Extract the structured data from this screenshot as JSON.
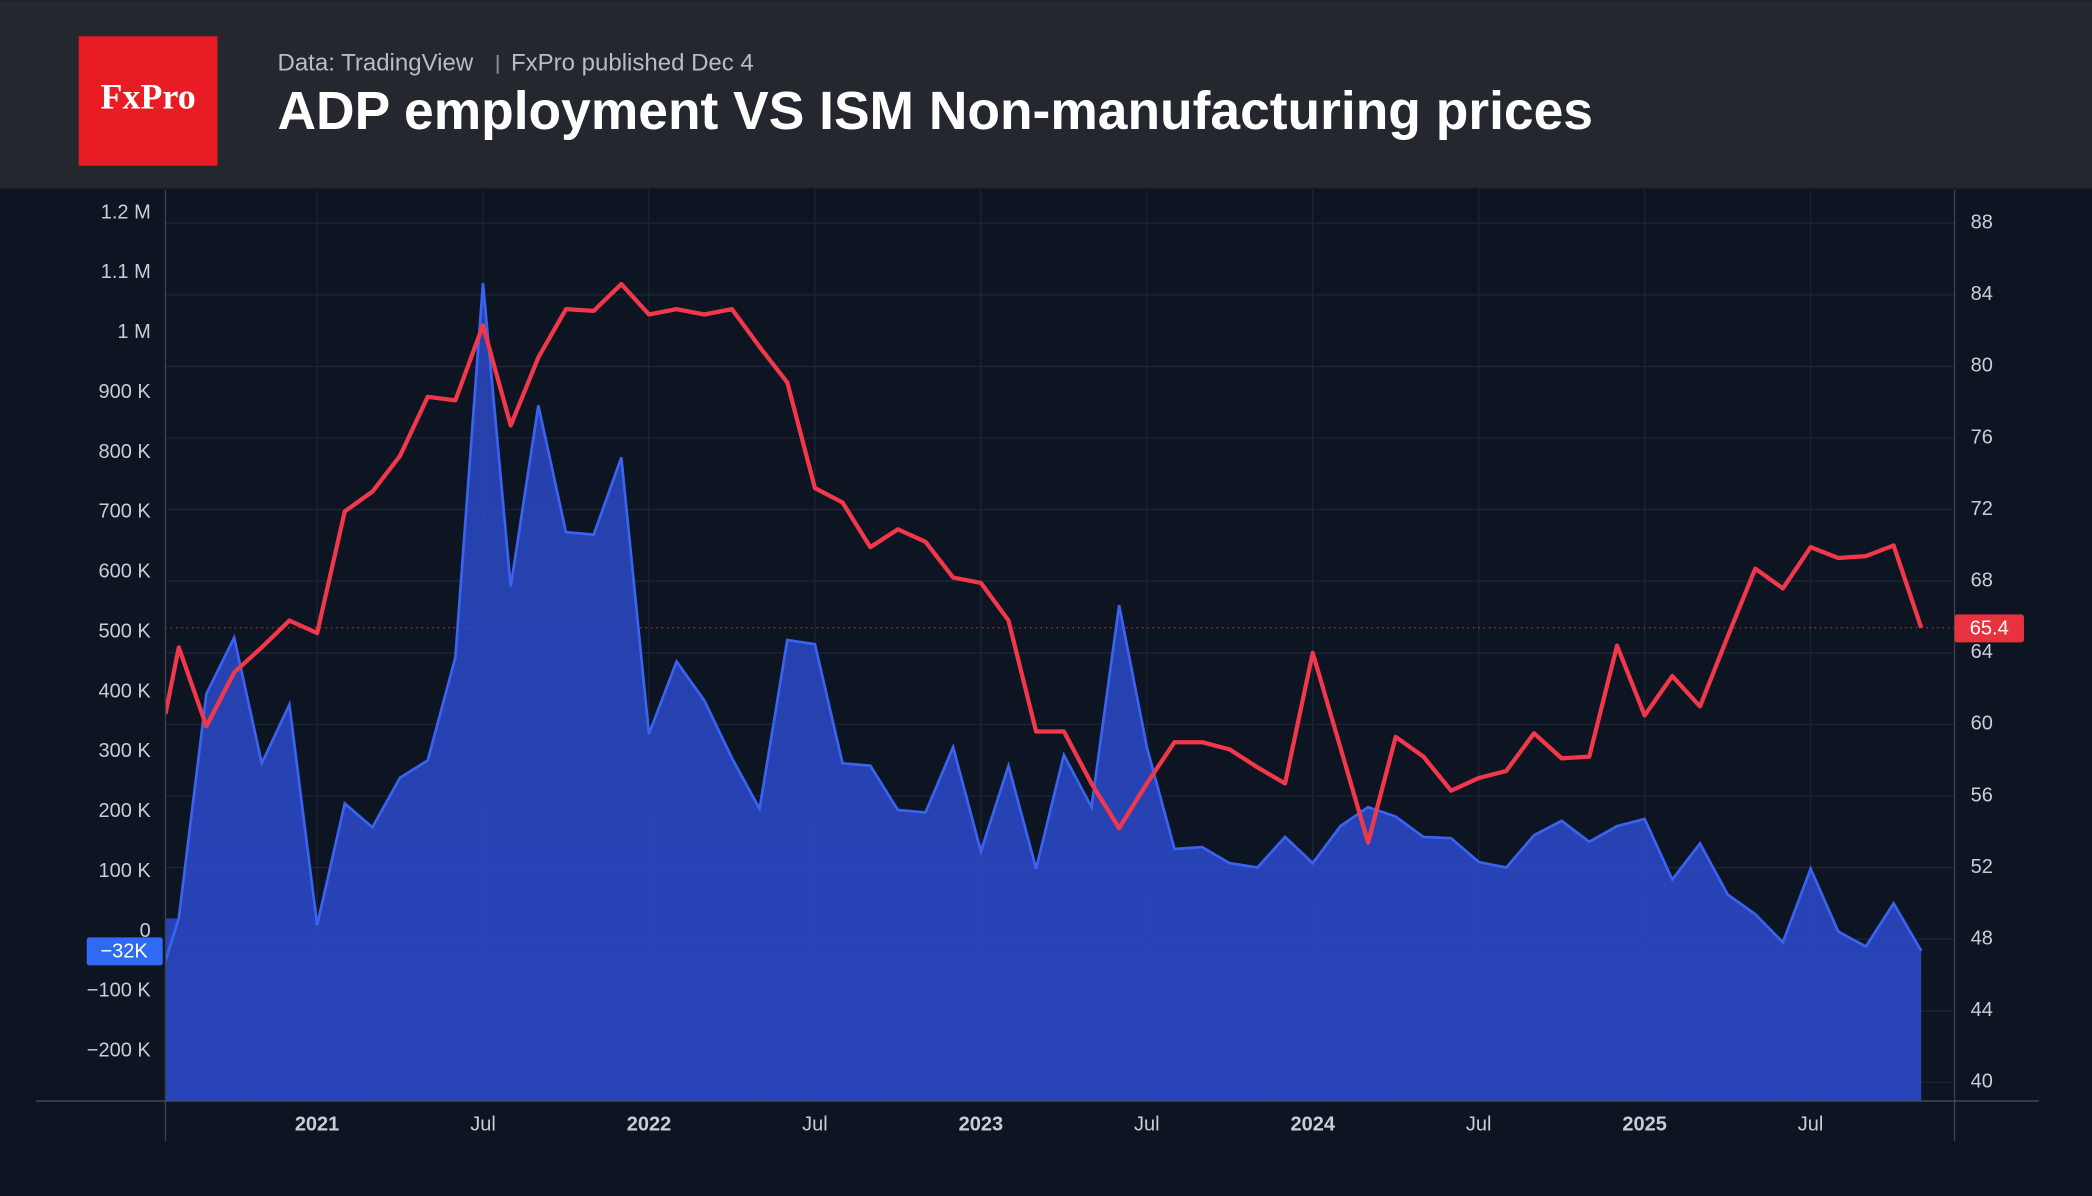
{
  "header": {
    "logo": "FxPro",
    "source": "Data: TradingView",
    "published": "FxPro published Dec 4"
  },
  "chart_data": {
    "type": "area",
    "title": "ADP employment VS ISM Non-manufacturing prices",
    "x": [
      "2020-08",
      "2020-09",
      "2020-10",
      "2020-11",
      "2020-12",
      "2021-01",
      "2021-02",
      "2021-03",
      "2021-04",
      "2021-05",
      "2021-06",
      "2021-07",
      "2021-08",
      "2021-09",
      "2021-10",
      "2021-11",
      "2021-12",
      "2022-01",
      "2022-02",
      "2022-03",
      "2022-04",
      "2022-05",
      "2022-06",
      "2022-07",
      "2022-08",
      "2022-09",
      "2022-10",
      "2022-11",
      "2022-12",
      "2023-01",
      "2023-02",
      "2023-03",
      "2023-04",
      "2023-05",
      "2023-06",
      "2023-07",
      "2023-08",
      "2023-09",
      "2023-10",
      "2023-11",
      "2023-12",
      "2024-01",
      "2024-02",
      "2024-03",
      "2024-04",
      "2024-05",
      "2024-06",
      "2024-07",
      "2024-08",
      "2024-09",
      "2024-10",
      "2024-11",
      "2024-12",
      "2025-01",
      "2025-02",
      "2025-03",
      "2025-04",
      "2025-05",
      "2025-06",
      "2025-07",
      "2025-08",
      "2025-09",
      "2025-10",
      "2025-11"
    ],
    "series": [
      {
        "kind": "area",
        "axis": "y",
        "color": "#3a63f0",
        "last_value_label": "−32K",
        "values": [
          22000,
          397000,
          491000,
          281000,
          379000,
          11000,
          214000,
          174000,
          257000,
          286000,
          458000,
          1083000,
          576000,
          879000,
          667000,
          663000,
          792000,
          330000,
          451000,
          386000,
          290000,
          205000,
          487000,
          480000,
          281000,
          277000,
          203000,
          199000,
          308000,
          134000,
          277000,
          105000,
          295000,
          208000,
          545000,
          308000,
          138000,
          141000,
          114000,
          107000,
          158000,
          114000,
          176000,
          208000,
          192000,
          158000,
          156000,
          116000,
          107000,
          161000,
          185000,
          150000,
          176000,
          188000,
          87000,
          147000,
          62000,
          29000,
          -18000,
          105000,
          0,
          -25000,
          47000,
          -32000
        ]
      },
      {
        "kind": "line",
        "axis": "y2",
        "color": "#f0384a",
        "values": [
          64.3,
          59.9,
          62.9,
          64.3,
          65.8,
          65.1,
          71.9,
          73.0,
          75.0,
          78.3,
          78.1,
          82.3,
          76.7,
          80.5,
          83.2,
          83.1,
          84.6,
          82.9,
          83.2,
          82.9,
          83.2,
          81.1,
          79.1,
          73.2,
          72.4,
          69.9,
          70.9,
          70.2,
          68.2,
          67.9,
          65.8,
          59.6,
          59.6,
          56.7,
          54.2,
          56.7,
          59.0,
          59.0,
          58.6,
          57.6,
          56.7,
          64.0,
          58.7,
          53.4,
          59.3,
          58.2,
          56.3,
          57.0,
          57.4,
          59.5,
          58.1,
          58.2,
          64.4,
          60.5,
          62.7,
          61.0,
          64.9,
          68.7,
          67.6,
          69.9,
          69.3,
          69.4,
          70.0,
          65.4
        ]
      }
    ],
    "ylim": [
      -283000,
      1239000
    ],
    "yticks": [
      {
        "value": 1200000,
        "label": "1.2 M"
      },
      {
        "value": 1100000,
        "label": "1.1 M"
      },
      {
        "value": 1000000,
        "label": "1 M"
      },
      {
        "value": 900000,
        "label": "900 K"
      },
      {
        "value": 800000,
        "label": "800 K"
      },
      {
        "value": 700000,
        "label": "700 K"
      },
      {
        "value": 600000,
        "label": "600 K"
      },
      {
        "value": 500000,
        "label": "500 K"
      },
      {
        "value": 400000,
        "label": "400 K"
      },
      {
        "value": 300000,
        "label": "300 K"
      },
      {
        "value": 200000,
        "label": "200 K"
      },
      {
        "value": 100000,
        "label": "100 K"
      },
      0,
      {
        "value": -100000,
        "label": "−100 K"
      },
      {
        "value": -200000,
        "label": "−200 K"
      }
    ],
    "y2lim": [
      38.96,
      89.87
    ],
    "y2ticks": [
      40,
      44,
      48,
      52,
      56,
      60,
      64,
      68,
      72,
      76,
      80,
      84,
      88
    ],
    "xticks": [
      {
        "value": "2021-01",
        "label": "2021"
      },
      {
        "value": "2021-07",
        "label": "Jul"
      },
      {
        "value": "2022-01",
        "label": "2022"
      },
      {
        "value": "2022-07",
        "label": "Jul"
      },
      {
        "value": "2023-01",
        "label": "2023"
      },
      {
        "value": "2023-07",
        "label": "Jul"
      },
      {
        "value": "2024-01",
        "label": "2024"
      },
      {
        "value": "2024-07",
        "label": "Jul"
      },
      {
        "value": "2025-01",
        "label": "2025"
      },
      {
        "value": "2025-07",
        "label": "Jul"
      }
    ],
    "grid": true
  }
}
